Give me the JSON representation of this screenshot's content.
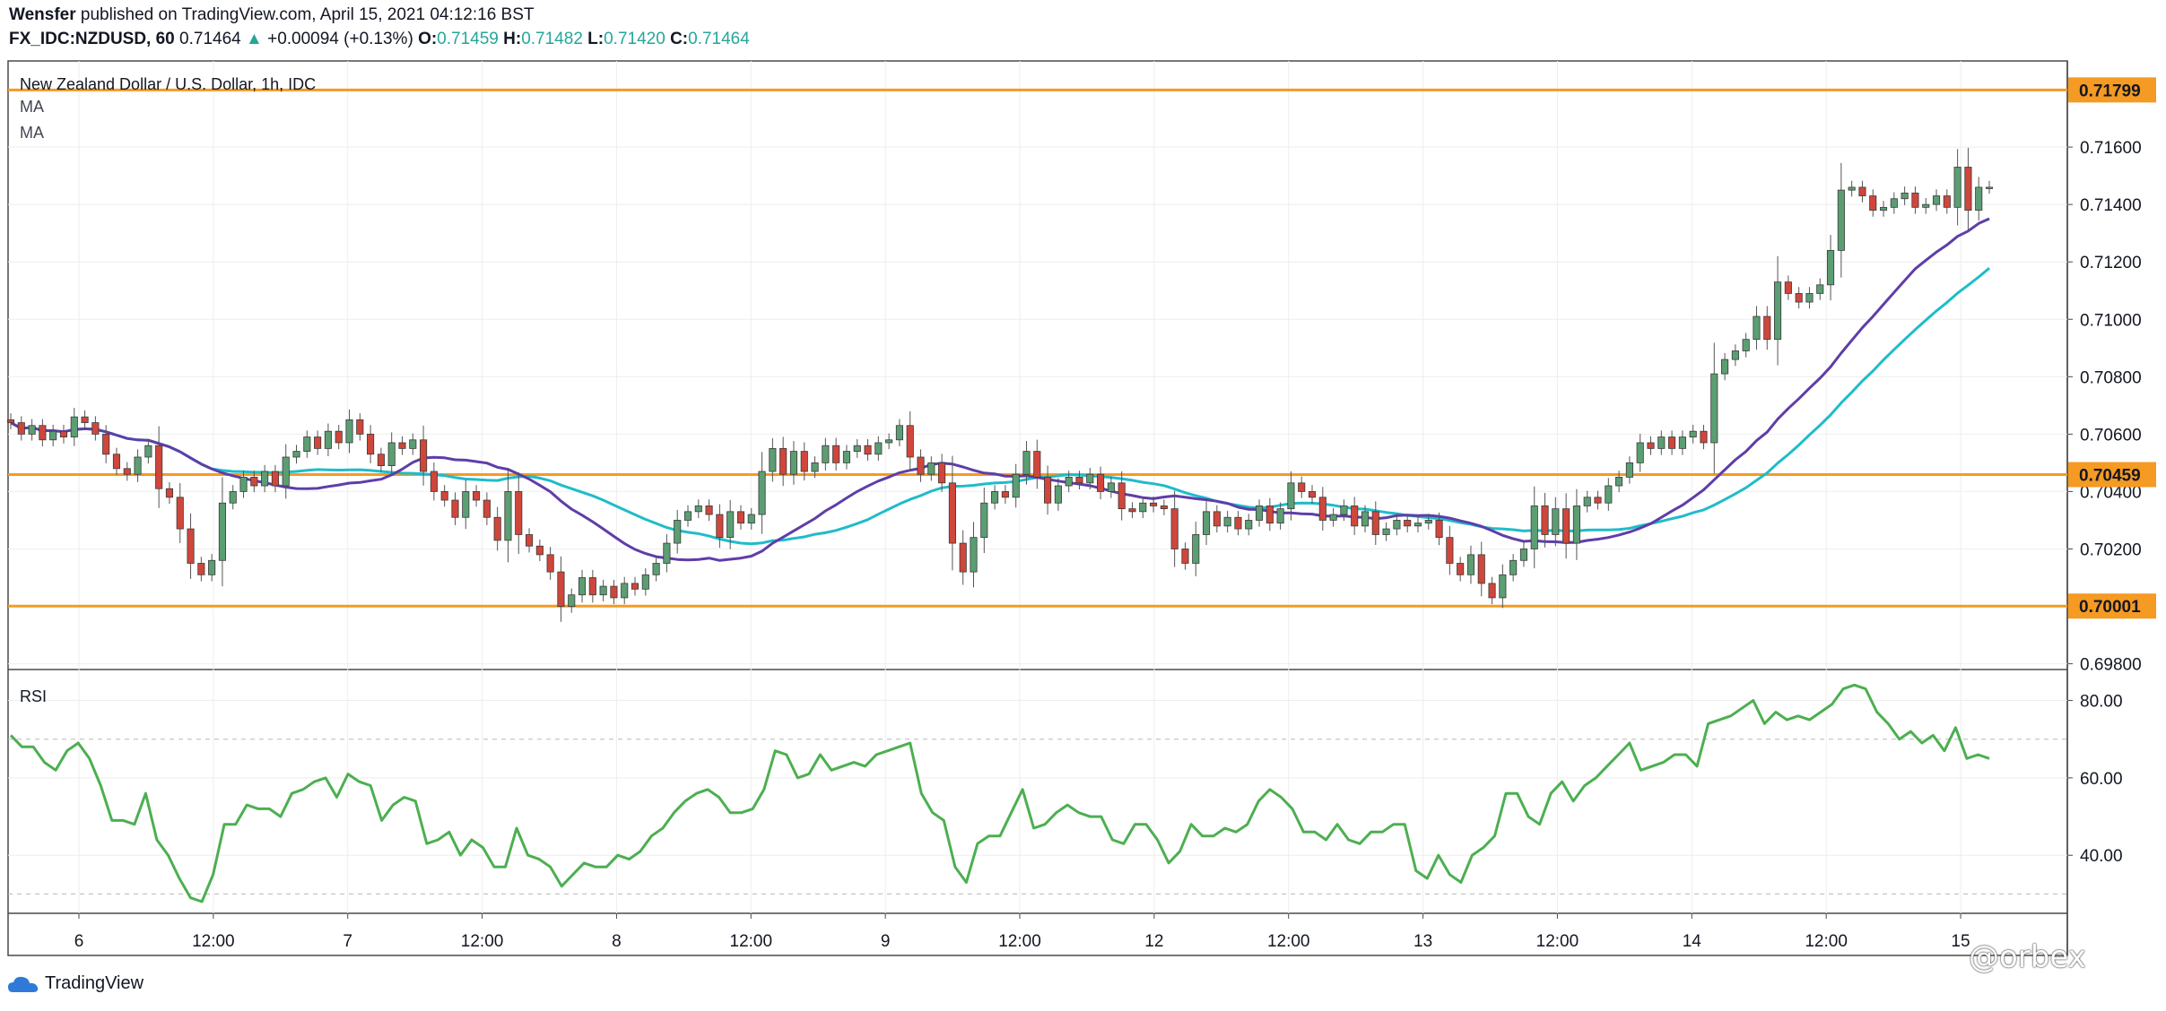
{
  "header": {
    "author": "Wensfer",
    "published_text": "published on TradingView.com, April 15, 2021 04:12:16 BST",
    "symbol": "FX_IDC:NZDUSD, 60",
    "last": "0.71464",
    "arrow": "▲",
    "change": "+0.00094 (+0.13%)",
    "o_label": "O:",
    "o_val": "0.71459",
    "h_label": "H:",
    "h_val": "0.71482",
    "l_label": "L:",
    "l_val": "0.71420",
    "c_label": "C:",
    "c_val": "0.71464"
  },
  "pane": {
    "title": "New Zealand Dollar / U.S. Dollar, 1h, IDC",
    "ma1_label": "MA",
    "ma2_label": "MA",
    "rsi_label": "RSI"
  },
  "footer": {
    "brand": "TradingView",
    "watermark": "@orbex"
  },
  "colors": {
    "up": "#5b9e73",
    "down": "#d0463b",
    "level": "#f59a23",
    "ma_fast": "#5e3ea8",
    "ma_slow": "#1fbcc9",
    "rsi": "#4caf50"
  },
  "chart_data": {
    "type": "candlestick",
    "price_axis": {
      "ticks": [
        "0.71600",
        "0.71400",
        "0.71200",
        "0.71000",
        "0.70800",
        "0.70600",
        "0.70400",
        "0.70200",
        "0.69800"
      ],
      "range": [
        0.6978,
        0.719
      ]
    },
    "levels": [
      {
        "value": 0.71799,
        "label": "0.71799"
      },
      {
        "value": 0.70459,
        "label": "0.70459"
      },
      {
        "value": 0.70001,
        "label": "0.70001"
      }
    ],
    "x_ticks": [
      "6",
      "12:00",
      "7",
      "12:00",
      "8",
      "12:00",
      "9",
      "12:00",
      "12",
      "12:00",
      "13",
      "12:00",
      "14",
      "12:00",
      "15"
    ],
    "candles_open_close": [
      [
        0.7065,
        0.7064
      ],
      [
        0.7064,
        0.706
      ],
      [
        0.706,
        0.7063
      ],
      [
        0.7063,
        0.7058
      ],
      [
        0.7058,
        0.7061
      ],
      [
        0.7061,
        0.7059
      ],
      [
        0.7059,
        0.7066
      ],
      [
        0.7066,
        0.7064
      ],
      [
        0.7064,
        0.706
      ],
      [
        0.706,
        0.7053
      ],
      [
        0.7053,
        0.7048
      ],
      [
        0.7048,
        0.7046
      ],
      [
        0.7046,
        0.7052
      ],
      [
        0.7052,
        0.7056
      ],
      [
        0.7056,
        0.7041
      ],
      [
        0.7041,
        0.7038
      ],
      [
        0.7038,
        0.7027
      ],
      [
        0.7027,
        0.7015
      ],
      [
        0.7015,
        0.7011
      ],
      [
        0.7011,
        0.7016
      ],
      [
        0.7016,
        0.7036
      ],
      [
        0.7036,
        0.704
      ],
      [
        0.704,
        0.7045
      ],
      [
        0.7045,
        0.7042
      ],
      [
        0.7042,
        0.7047
      ],
      [
        0.7047,
        0.7042
      ],
      [
        0.7042,
        0.7052
      ],
      [
        0.7052,
        0.7054
      ],
      [
        0.7054,
        0.7059
      ],
      [
        0.7059,
        0.7055
      ],
      [
        0.7055,
        0.7061
      ],
      [
        0.7061,
        0.7057
      ],
      [
        0.7057,
        0.7065
      ],
      [
        0.7065,
        0.706
      ],
      [
        0.706,
        0.7053
      ],
      [
        0.7053,
        0.7049
      ],
      [
        0.7049,
        0.7057
      ],
      [
        0.7057,
        0.7055
      ],
      [
        0.7055,
        0.7058
      ],
      [
        0.7058,
        0.7047
      ],
      [
        0.7047,
        0.704
      ],
      [
        0.704,
        0.7037
      ],
      [
        0.7037,
        0.7031
      ],
      [
        0.7031,
        0.704
      ],
      [
        0.704,
        0.7037
      ],
      [
        0.7037,
        0.7031
      ],
      [
        0.7031,
        0.7023
      ],
      [
        0.7023,
        0.704
      ],
      [
        0.704,
        0.7025
      ],
      [
        0.7025,
        0.7021
      ],
      [
        0.7021,
        0.7018
      ],
      [
        0.7018,
        0.7012
      ],
      [
        0.7012,
        0.7
      ],
      [
        0.7,
        0.7004
      ],
      [
        0.7004,
        0.701
      ],
      [
        0.701,
        0.7004
      ],
      [
        0.7004,
        0.7007
      ],
      [
        0.7007,
        0.7003
      ],
      [
        0.7003,
        0.7008
      ],
      [
        0.7008,
        0.7006
      ],
      [
        0.7006,
        0.7011
      ],
      [
        0.7011,
        0.7015
      ],
      [
        0.7015,
        0.7022
      ],
      [
        0.7022,
        0.703
      ],
      [
        0.703,
        0.7033
      ],
      [
        0.7033,
        0.7035
      ],
      [
        0.7035,
        0.7032
      ],
      [
        0.7032,
        0.7024
      ],
      [
        0.7024,
        0.7033
      ],
      [
        0.7033,
        0.7029
      ],
      [
        0.7029,
        0.7032
      ],
      [
        0.7032,
        0.7047
      ],
      [
        0.7047,
        0.7055
      ],
      [
        0.7055,
        0.7046
      ],
      [
        0.7046,
        0.7054
      ],
      [
        0.7054,
        0.7047
      ],
      [
        0.7047,
        0.705
      ],
      [
        0.705,
        0.7056
      ],
      [
        0.7056,
        0.705
      ],
      [
        0.705,
        0.7054
      ],
      [
        0.7054,
        0.7056
      ],
      [
        0.7056,
        0.7053
      ],
      [
        0.7053,
        0.7057
      ],
      [
        0.7057,
        0.7058
      ],
      [
        0.7058,
        0.7063
      ],
      [
        0.7063,
        0.7052
      ],
      [
        0.7052,
        0.7046
      ],
      [
        0.7046,
        0.705
      ],
      [
        0.705,
        0.7043
      ],
      [
        0.7043,
        0.7022
      ],
      [
        0.7022,
        0.7012
      ],
      [
        0.7012,
        0.7024
      ],
      [
        0.7024,
        0.7036
      ],
      [
        0.7036,
        0.704
      ],
      [
        0.704,
        0.7038
      ],
      [
        0.7038,
        0.7046
      ],
      [
        0.7046,
        0.7054
      ],
      [
        0.7054,
        0.7045
      ],
      [
        0.7045,
        0.7036
      ],
      [
        0.7036,
        0.7042
      ],
      [
        0.7042,
        0.7045
      ],
      [
        0.7045,
        0.7043
      ],
      [
        0.7043,
        0.7046
      ],
      [
        0.7046,
        0.704
      ],
      [
        0.704,
        0.7043
      ],
      [
        0.7043,
        0.7034
      ],
      [
        0.7034,
        0.7033
      ],
      [
        0.7033,
        0.7036
      ],
      [
        0.7036,
        0.7035
      ],
      [
        0.7035,
        0.7034
      ],
      [
        0.7034,
        0.702
      ],
      [
        0.702,
        0.7015
      ],
      [
        0.7015,
        0.7025
      ],
      [
        0.7025,
        0.7033
      ],
      [
        0.7033,
        0.7028
      ],
      [
        0.7028,
        0.7031
      ],
      [
        0.7031,
        0.7027
      ],
      [
        0.7027,
        0.703
      ],
      [
        0.703,
        0.7035
      ],
      [
        0.7035,
        0.7029
      ],
      [
        0.7029,
        0.7034
      ],
      [
        0.7034,
        0.7043
      ],
      [
        0.7043,
        0.704
      ],
      [
        0.704,
        0.7038
      ],
      [
        0.7038,
        0.703
      ],
      [
        0.703,
        0.7032
      ],
      [
        0.7032,
        0.7035
      ],
      [
        0.7035,
        0.7028
      ],
      [
        0.7028,
        0.7033
      ],
      [
        0.7033,
        0.7025
      ],
      [
        0.7025,
        0.7027
      ],
      [
        0.7027,
        0.703
      ],
      [
        0.703,
        0.7028
      ],
      [
        0.7028,
        0.7029
      ],
      [
        0.7029,
        0.703
      ],
      [
        0.703,
        0.7024
      ],
      [
        0.7024,
        0.7015
      ],
      [
        0.7015,
        0.7011
      ],
      [
        0.7011,
        0.7018
      ],
      [
        0.7018,
        0.7008
      ],
      [
        0.7008,
        0.7003
      ],
      [
        0.7003,
        0.7011
      ],
      [
        0.7011,
        0.7016
      ],
      [
        0.7016,
        0.702
      ],
      [
        0.702,
        0.7035
      ],
      [
        0.7035,
        0.7025
      ],
      [
        0.7025,
        0.7034
      ],
      [
        0.7034,
        0.7022
      ],
      [
        0.7022,
        0.7035
      ],
      [
        0.7035,
        0.7038
      ],
      [
        0.7038,
        0.7036
      ],
      [
        0.7036,
        0.7042
      ],
      [
        0.7042,
        0.7045
      ],
      [
        0.7045,
        0.705
      ],
      [
        0.705,
        0.7057
      ],
      [
        0.7057,
        0.7055
      ],
      [
        0.7055,
        0.7059
      ],
      [
        0.7059,
        0.7055
      ],
      [
        0.7055,
        0.7059
      ],
      [
        0.7059,
        0.7061
      ],
      [
        0.7061,
        0.7057
      ],
      [
        0.7057,
        0.7081
      ],
      [
        0.7081,
        0.7086
      ],
      [
        0.7086,
        0.7089
      ],
      [
        0.7089,
        0.7093
      ],
      [
        0.7093,
        0.7101
      ],
      [
        0.7101,
        0.7093
      ],
      [
        0.7093,
        0.7113
      ],
      [
        0.7113,
        0.7109
      ],
      [
        0.7109,
        0.7106
      ],
      [
        0.7106,
        0.7109
      ],
      [
        0.7109,
        0.7112
      ],
      [
        0.7112,
        0.7124
      ],
      [
        0.7124,
        0.7145
      ],
      [
        0.7145,
        0.7146
      ],
      [
        0.7146,
        0.7143
      ],
      [
        0.7143,
        0.7138
      ],
      [
        0.7138,
        0.7139
      ],
      [
        0.7139,
        0.7142
      ],
      [
        0.7142,
        0.7144
      ],
      [
        0.7144,
        0.7139
      ],
      [
        0.7139,
        0.714
      ],
      [
        0.714,
        0.7143
      ],
      [
        0.7143,
        0.7139
      ],
      [
        0.7139,
        0.7153
      ],
      [
        0.7153,
        0.7138
      ],
      [
        0.7138,
        0.7146
      ],
      [
        0.7146,
        0.7146
      ]
    ],
    "rsi": {
      "ticks": [
        "80.00",
        "60.00",
        "40.00"
      ],
      "range": [
        25,
        88
      ],
      "bands": [
        70,
        30
      ],
      "values": [
        71,
        68,
        68,
        64,
        62,
        67,
        69,
        65,
        58,
        49,
        49,
        48,
        56,
        44,
        40,
        34,
        29,
        28,
        35,
        48,
        48,
        53,
        52,
        52,
        50,
        56,
        57,
        59,
        60,
        55,
        61,
        59,
        58,
        49,
        53,
        55,
        54,
        43,
        44,
        46,
        40,
        44,
        42,
        37,
        37,
        47,
        40,
        39,
        37,
        32,
        35,
        38,
        37,
        37,
        40,
        39,
        41,
        45,
        47,
        51,
        54,
        56,
        57,
        55,
        51,
        51,
        52,
        57,
        67,
        66,
        60,
        61,
        66,
        62,
        63,
        64,
        63,
        66,
        67,
        68,
        69,
        56,
        51,
        49,
        37,
        33,
        43,
        45,
        45,
        51,
        57,
        47,
        48,
        51,
        53,
        51,
        50,
        50,
        44,
        43,
        48,
        48,
        44,
        38,
        41,
        48,
        45,
        45,
        47,
        46,
        48,
        54,
        57,
        55,
        52,
        46,
        46,
        44,
        48,
        44,
        43,
        46,
        46,
        48,
        48,
        36,
        34,
        40,
        35,
        33,
        40,
        42,
        45,
        56,
        56,
        50,
        48,
        56,
        59,
        54,
        58,
        60,
        63,
        66,
        69,
        62,
        63,
        64,
        66,
        66,
        63,
        74,
        75,
        76,
        78,
        80,
        74,
        77,
        75,
        76,
        75,
        77,
        79,
        83,
        84,
        83,
        77,
        74,
        70,
        72,
        69,
        71,
        67,
        73,
        65,
        66,
        65
      ]
    }
  }
}
